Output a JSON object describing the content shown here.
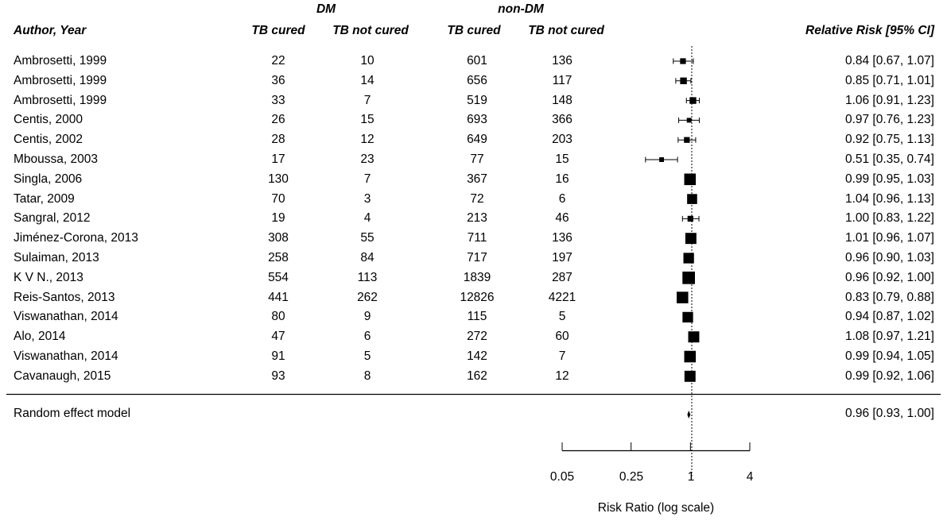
{
  "chart_data": {
    "type": "forest",
    "headers": {
      "study": "Author, Year",
      "group1": "DM",
      "group2": "non-DM",
      "col_cured": "TB cured",
      "col_not_cured": "TB not cured",
      "effect": "Relative Risk [95% CI]"
    },
    "studies": [
      {
        "label": "Ambrosetti, 1999",
        "dm_cured": "22",
        "dm_not": "10",
        "ndm_cured": "601",
        "ndm_not": "136",
        "rr": 0.84,
        "lo": 0.67,
        "hi": 1.07,
        "ci_text": "0.84 [0.67, 1.07]",
        "weight": 3
      },
      {
        "label": "Ambrosetti, 1999",
        "dm_cured": "36",
        "dm_not": "14",
        "ndm_cured": "656",
        "ndm_not": "117",
        "rr": 0.85,
        "lo": 0.71,
        "hi": 1.01,
        "ci_text": "0.85 [0.71, 1.01]",
        "weight": 4
      },
      {
        "label": "Ambrosetti, 1999",
        "dm_cured": "33",
        "dm_not": "7",
        "ndm_cured": "519",
        "ndm_not": "148",
        "rr": 1.06,
        "lo": 0.91,
        "hi": 1.23,
        "ci_text": "1.06 [0.91, 1.23]",
        "weight": 4
      },
      {
        "label": "Centis, 2000",
        "dm_cured": "26",
        "dm_not": "15",
        "ndm_cured": "693",
        "ndm_not": "366",
        "rr": 0.97,
        "lo": 0.76,
        "hi": 1.23,
        "ci_text": "0.97 [0.76, 1.23]",
        "weight": 2
      },
      {
        "label": "Centis, 2002",
        "dm_cured": "28",
        "dm_not": "12",
        "ndm_cured": "649",
        "ndm_not": "203",
        "rr": 0.92,
        "lo": 0.75,
        "hi": 1.13,
        "ci_text": "0.92 [0.75, 1.13]",
        "weight": 3
      },
      {
        "label": "Mboussa, 2003",
        "dm_cured": "17",
        "dm_not": "23",
        "ndm_cured": "77",
        "ndm_not": "15",
        "rr": 0.51,
        "lo": 0.35,
        "hi": 0.74,
        "ci_text": "0.51 [0.35, 0.74]",
        "weight": 2
      },
      {
        "label": "Singla, 2006",
        "dm_cured": "130",
        "dm_not": "7",
        "ndm_cured": "367",
        "ndm_not": "16",
        "rr": 0.99,
        "lo": 0.95,
        "hi": 1.03,
        "ci_text": "0.99 [0.95, 1.03]",
        "weight": 12
      },
      {
        "label": "Tatar, 2009",
        "dm_cured": "70",
        "dm_not": "3",
        "ndm_cured": "72",
        "ndm_not": "6",
        "rr": 1.04,
        "lo": 0.96,
        "hi": 1.13,
        "ci_text": "1.04 [0.96, 1.13]",
        "weight": 9
      },
      {
        "label": "Sangral, 2012",
        "dm_cured": "19",
        "dm_not": "4",
        "ndm_cured": "213",
        "ndm_not": "46",
        "rr": 1.0,
        "lo": 0.83,
        "hi": 1.22,
        "ci_text": "1.00 [0.83, 1.22]",
        "weight": 3
      },
      {
        "label": "Jiménez-Corona, 2013",
        "dm_cured": "308",
        "dm_not": "55",
        "ndm_cured": "711",
        "ndm_not": "136",
        "rr": 1.01,
        "lo": 0.96,
        "hi": 1.07,
        "ci_text": "1.01 [0.96, 1.07]",
        "weight": 11
      },
      {
        "label": "Sulaiman, 2013",
        "dm_cured": "258",
        "dm_not": "84",
        "ndm_cured": "717",
        "ndm_not": "197",
        "rr": 0.96,
        "lo": 0.9,
        "hi": 1.03,
        "ci_text": "0.96 [0.90, 1.03]",
        "weight": 10
      },
      {
        "label": "K V N., 2013",
        "dm_cured": "554",
        "dm_not": "113",
        "ndm_cured": "1839",
        "ndm_not": "287",
        "rr": 0.96,
        "lo": 0.92,
        "hi": 1.0,
        "ci_text": "0.96 [0.92, 1.00]",
        "weight": 14
      },
      {
        "label": "Reis-Santos, 2013",
        "dm_cured": "441",
        "dm_not": "262",
        "ndm_cured": "12826",
        "ndm_not": "4221",
        "rr": 0.83,
        "lo": 0.79,
        "hi": 0.88,
        "ci_text": "0.83 [0.79, 0.88]",
        "weight": 12
      },
      {
        "label": "Viswanathan, 2014",
        "dm_cured": "80",
        "dm_not": "9",
        "ndm_cured": "115",
        "ndm_not": "5",
        "rr": 0.94,
        "lo": 0.87,
        "hi": 1.02,
        "ci_text": "0.94 [0.87, 1.02]",
        "weight": 10
      },
      {
        "label": "Alo, 2014",
        "dm_cured": "47",
        "dm_not": "6",
        "ndm_cured": "272",
        "ndm_not": "60",
        "rr": 1.08,
        "lo": 0.97,
        "hi": 1.21,
        "ci_text": "1.08 [0.97, 1.21]",
        "weight": 11
      },
      {
        "label": "Viswanathan, 2014",
        "dm_cured": "91",
        "dm_not": "5",
        "ndm_cured": "142",
        "ndm_not": "7",
        "rr": 0.99,
        "lo": 0.94,
        "hi": 1.05,
        "ci_text": "0.99 [0.94, 1.05]",
        "weight": 12
      },
      {
        "label": "Cavanaugh, 2015",
        "dm_cured": "93",
        "dm_not": "8",
        "ndm_cured": "162",
        "ndm_not": "12",
        "rr": 0.99,
        "lo": 0.92,
        "hi": 1.06,
        "ci_text": "0.99 [0.92, 1.06]",
        "weight": 11
      }
    ],
    "summary": {
      "label": "Random effect model",
      "rr": 0.96,
      "lo": 0.93,
      "hi": 1.0,
      "ci_text": "0.96 [0.93, 1.00]"
    },
    "x_axis": {
      "label": "Risk Ratio (log scale)",
      "scale": "log",
      "ticks": [
        0.05,
        0.25,
        1,
        4
      ],
      "tick_labels": [
        "0.05",
        "0.25",
        "1",
        "4"
      ],
      "reference_line": 1
    },
    "grid": false
  }
}
